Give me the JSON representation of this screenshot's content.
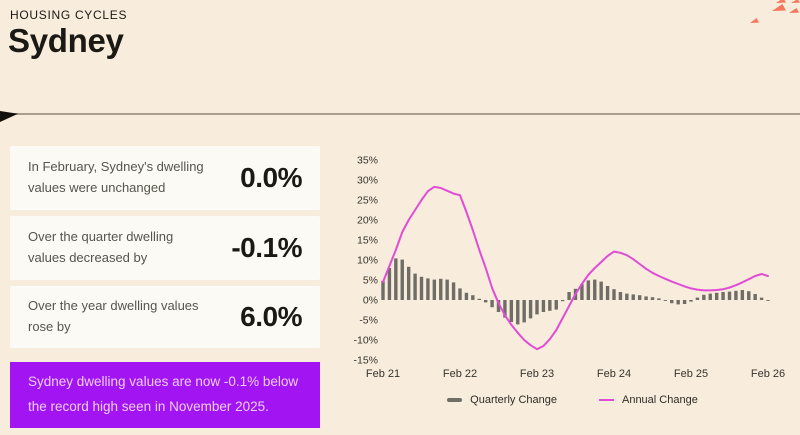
{
  "header": {
    "eyebrow": "HOUSING CYCLES",
    "title": "Sydney"
  },
  "stat_cards": [
    {
      "label": "In February, Sydney's dwelling values were unchanged",
      "value": "0.0%"
    },
    {
      "label": "Over the quarter dwelling values decreased by",
      "value": "-0.1%"
    },
    {
      "label": "Over the year dwelling values rose by",
      "value": "6.0%"
    }
  ],
  "banner": {
    "text": "Sydney dwelling values are now -0.1% below the record high seen in November 2025."
  },
  "theme": {
    "background": "#f8ecdc",
    "card_background": "#fcfaf5",
    "text_primary": "#1b1914",
    "text_secondary": "#57544d",
    "banner_background": "#a215f2",
    "banner_text": "#eecdf4",
    "bar_color": "#6f6d66",
    "line_color": "#e04cd6",
    "accent_triangle": "#f5775f",
    "divider": "#a89f90"
  },
  "chart_data": {
    "type": "bar+line",
    "title": "",
    "xlabel": "",
    "ylabel": "",
    "x_unit": "month",
    "months_span": 60,
    "x_tick_labels": [
      "Feb 21",
      "Feb 22",
      "Feb 23",
      "Feb 24",
      "Feb 25",
      "Feb 26"
    ],
    "y_tick_labels": [
      "35%",
      "30%",
      "25%",
      "20%",
      "15%",
      "10%",
      "5%",
      "0%",
      "-5%",
      "-10%",
      "-15%"
    ],
    "ylim": [
      -15,
      35
    ],
    "grid": false,
    "legend_position": "bottom",
    "series": [
      {
        "name": "Quarterly Change",
        "type": "bar",
        "color": "#6f6d66",
        "values": [
          4.8,
          8.0,
          10.4,
          10.1,
          8.3,
          6.6,
          5.8,
          5.4,
          5.1,
          5.3,
          5.1,
          4.4,
          2.9,
          1.8,
          1.2,
          0.3,
          -0.6,
          -1.8,
          -3.0,
          -4.4,
          -5.5,
          -6.1,
          -5.6,
          -4.6,
          -3.6,
          -3.0,
          -2.7,
          -2.4,
          -0.3,
          2.0,
          2.8,
          4.0,
          4.9,
          5.1,
          4.6,
          3.5,
          2.7,
          2.0,
          1.6,
          1.4,
          1.2,
          0.9,
          0.7,
          0.4,
          -0.2,
          -0.8,
          -1.1,
          -1.0,
          -0.4,
          0.6,
          1.3,
          1.6,
          1.8,
          2.0,
          2.1,
          2.3,
          2.5,
          2.2,
          1.5,
          0.6,
          -0.1
        ]
      },
      {
        "name": "Annual Change",
        "type": "line",
        "color": "#e04cd6",
        "values": [
          4.5,
          8.5,
          12.5,
          17.0,
          20.0,
          22.5,
          25.0,
          27.2,
          28.3,
          28.0,
          27.3,
          26.6,
          26.2,
          22.0,
          17.5,
          12.5,
          8.0,
          3.0,
          -0.8,
          -3.8,
          -6.2,
          -8.2,
          -10.0,
          -11.3,
          -12.3,
          -11.5,
          -9.8,
          -7.5,
          -4.5,
          -1.5,
          1.5,
          4.0,
          6.3,
          8.0,
          9.5,
          11.0,
          12.1,
          11.8,
          11.2,
          10.2,
          9.0,
          7.8,
          6.8,
          6.0,
          5.3,
          4.6,
          4.0,
          3.4,
          2.9,
          2.6,
          2.4,
          2.4,
          2.5,
          2.7,
          3.1,
          3.7,
          4.4,
          5.2,
          6.0,
          6.5,
          6.0
        ]
      }
    ]
  }
}
